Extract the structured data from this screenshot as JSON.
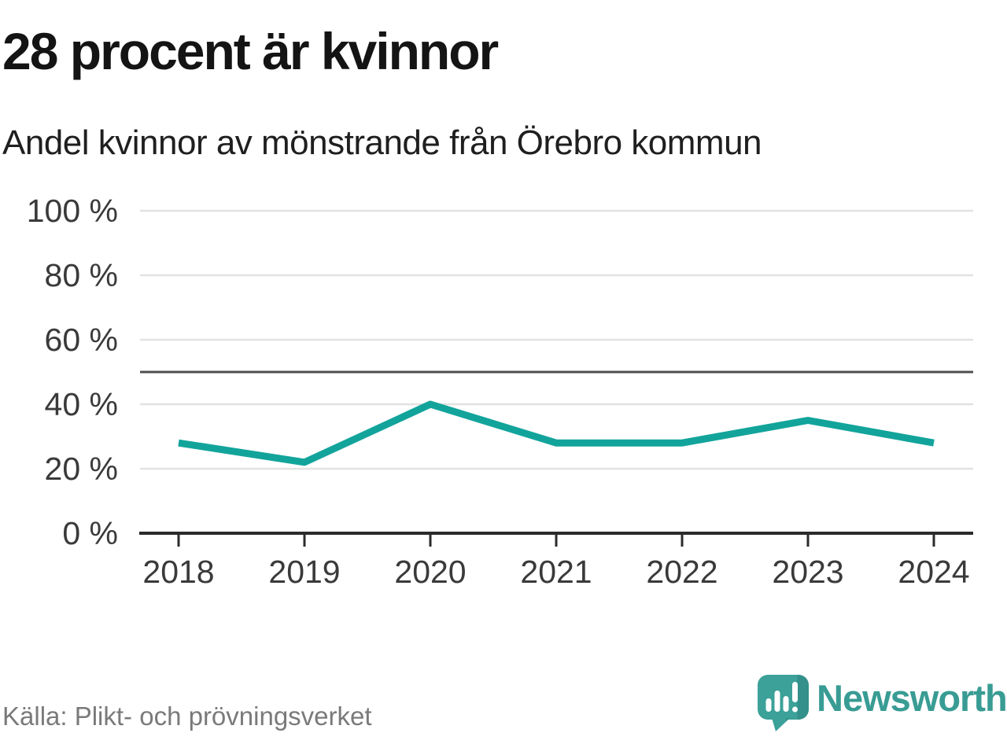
{
  "header": {
    "title": "28 procent är kvinnor",
    "subtitle": "Andel kvinnor av mönstrande från Örebro kommun"
  },
  "chart_data": {
    "type": "line",
    "title": "28 procent är kvinnor",
    "subtitle": "Andel kvinnor av mönstrande från Örebro kommun",
    "x": [
      2018,
      2019,
      2020,
      2021,
      2022,
      2023,
      2024
    ],
    "x_labels": [
      "2018",
      "2019",
      "2020",
      "2021",
      "2022",
      "2023",
      "2024"
    ],
    "series": [
      {
        "name": "Andel kvinnor av mönstrande",
        "values": [
          28,
          22,
          40,
          28,
          28,
          35,
          28
        ],
        "color": "#12a49b"
      }
    ],
    "unit": "%",
    "ylim": [
      0,
      100
    ],
    "yticks": [
      0,
      20,
      40,
      60,
      80,
      100
    ],
    "ytick_labels": [
      "0 %",
      "20 %",
      "40 %",
      "60 %",
      "80 %",
      "100 %"
    ],
    "reference_line": {
      "value": 50,
      "color": "#4f4f4f"
    },
    "grid": "horizontal",
    "legend_position": "none",
    "colors": {
      "grid": "#e2e2e2",
      "axis": "#2b2b2b",
      "tick_text": "#3a3a3a"
    }
  },
  "footer": {
    "source": "Källa: Plikt- och prövningsverket",
    "brand": "Newsworthy",
    "brand_color": "#399c94",
    "logo_icon": "speech-bubble-bar-chart-icon"
  }
}
